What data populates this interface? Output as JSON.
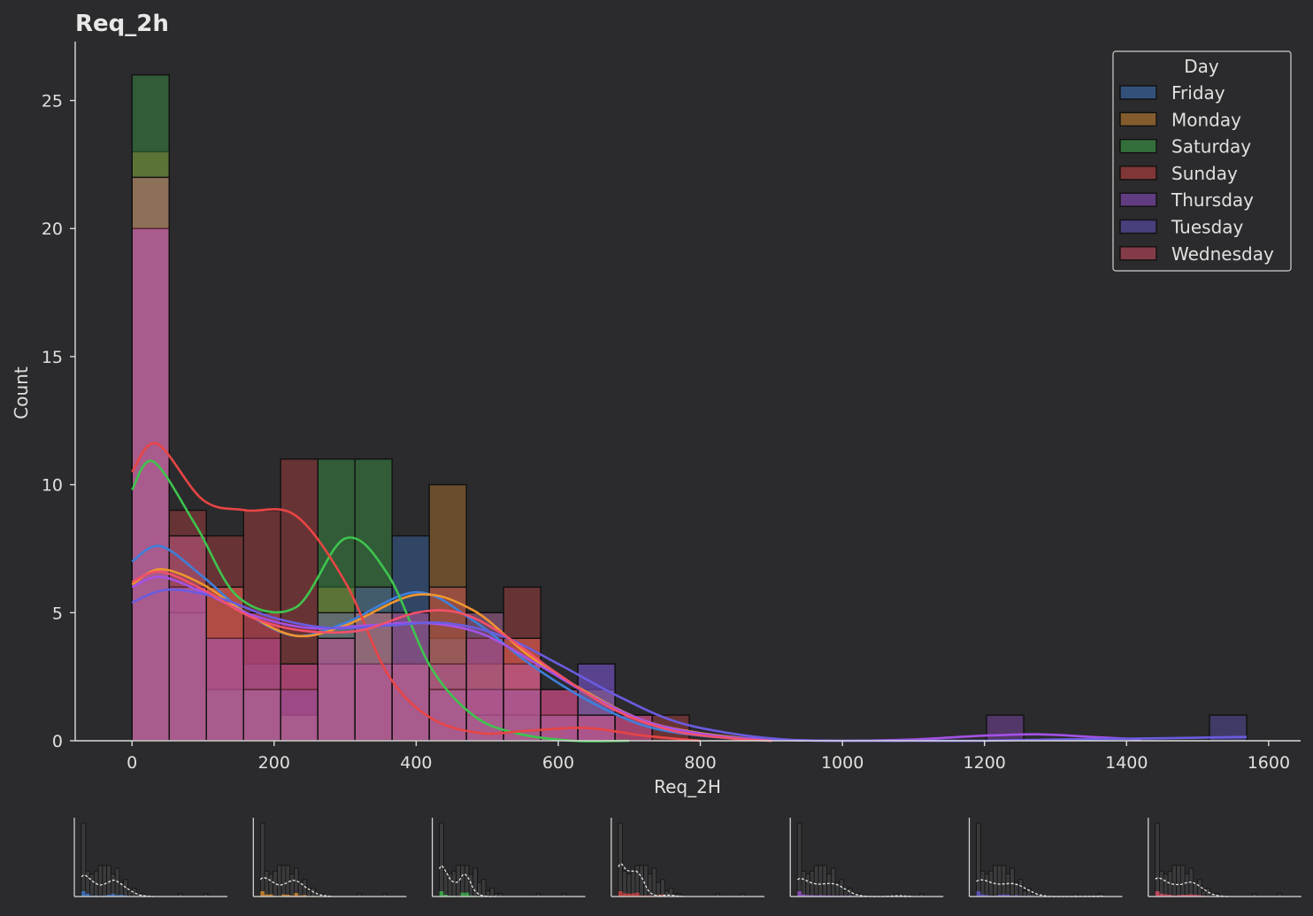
{
  "chart_data": {
    "type": "bar",
    "title": "Req_2h",
    "xlabel": "Req_2H",
    "ylabel": "Count",
    "xlim": [
      -80,
      1645
    ],
    "ylim": [
      0,
      27.3
    ],
    "xticks": [
      0,
      200,
      400,
      600,
      800,
      1000,
      1200,
      1400,
      1600
    ],
    "yticks": [
      0,
      5,
      10,
      15,
      20,
      25
    ],
    "bin_edges": [
      0,
      52.3,
      104.6,
      156.9,
      209.2,
      261.5,
      313.8,
      366.1,
      418.4,
      470.7,
      523,
      575.3,
      627.6,
      679.9,
      732.2,
      784.5,
      836.8,
      889.1,
      941.4,
      993.7,
      1046,
      1098.3,
      1150.6,
      1202.9,
      1255.2,
      1307.5,
      1359.8,
      1412.1,
      1464.4,
      1516.7,
      1569
    ],
    "legend": {
      "title": "Day",
      "position": "top-right"
    },
    "series": [
      {
        "name": "Friday",
        "color": "#3f7fd9",
        "counts": [
          22,
          8,
          2,
          3,
          1,
          3,
          5,
          8,
          4,
          5,
          3,
          1,
          1,
          0,
          0,
          0,
          0,
          0,
          0,
          0,
          0,
          0,
          0,
          0,
          0,
          0,
          0,
          0,
          0,
          0
        ],
        "kde_x": [
          0,
          40,
          100,
          160,
          230,
          300,
          400,
          480,
          560,
          640,
          720,
          800,
          900
        ],
        "kde_y": [
          7,
          7.6,
          6.4,
          5,
          4.1,
          4.6,
          5.8,
          4.7,
          3,
          1.6,
          0.6,
          0.2,
          0
        ]
      },
      {
        "name": "Monday",
        "color": "#f0962e",
        "counts": [
          23,
          6,
          6,
          2,
          1,
          6,
          5,
          3,
          10,
          3,
          4,
          1,
          2,
          0,
          0,
          0,
          0,
          0,
          0,
          0,
          0,
          0,
          0,
          0,
          0,
          0,
          0,
          0,
          0,
          0
        ],
        "kde_x": [
          0,
          40,
          100,
          160,
          230,
          300,
          400,
          480,
          560,
          640,
          720,
          800,
          900
        ],
        "kde_y": [
          6.1,
          6.7,
          6.1,
          5,
          4.1,
          4.5,
          5.7,
          5.1,
          3.3,
          1.9,
          0.8,
          0.3,
          0
        ]
      },
      {
        "name": "Saturday",
        "color": "#3ec44e",
        "counts": [
          26,
          5,
          2,
          2,
          1,
          11,
          11,
          3,
          2,
          1,
          1,
          0,
          0,
          0,
          0,
          0,
          0,
          0,
          0,
          0,
          0,
          0,
          0,
          0,
          0,
          0,
          0,
          0,
          0,
          0
        ],
        "kde_x": [
          0,
          30,
          90,
          150,
          230,
          300,
          360,
          420,
          480,
          540,
          620,
          700
        ],
        "kde_y": [
          9.8,
          10.9,
          8.4,
          5.6,
          5.2,
          7.9,
          6.5,
          2.9,
          1,
          0.3,
          0,
          0
        ]
      },
      {
        "name": "Sunday",
        "color": "#e84545",
        "counts": [
          20,
          9,
          8,
          9,
          11,
          3,
          3,
          3,
          2,
          4,
          6,
          2,
          1,
          1,
          1,
          0,
          0,
          0,
          0,
          0,
          0,
          0,
          0,
          0,
          0,
          0,
          0,
          0,
          0,
          0
        ],
        "kde_x": [
          0,
          35,
          100,
          160,
          230,
          300,
          360,
          420,
          490,
          560,
          640,
          720,
          800
        ],
        "kde_y": [
          10.5,
          11.6,
          9.4,
          9,
          8.8,
          6.2,
          2.6,
          0.9,
          0.3,
          0.4,
          0.5,
          0.2,
          0
        ]
      },
      {
        "name": "Thursday",
        "color": "#a552e6",
        "counts": [
          20,
          6,
          4,
          4,
          3,
          4,
          3,
          3,
          3,
          2,
          3,
          2,
          3,
          1,
          0,
          0,
          0,
          0,
          0,
          0,
          0,
          0,
          0,
          1,
          0,
          0,
          0,
          0,
          0,
          0
        ],
        "kde_x": [
          0,
          40,
          100,
          170,
          250,
          330,
          410,
          490,
          570,
          650,
          730,
          820,
          900,
          1000,
          1100,
          1200,
          1280,
          1350,
          1420
        ],
        "kde_y": [
          6,
          6.4,
          5.8,
          4.9,
          4.4,
          4.5,
          4.6,
          4.2,
          3,
          1.7,
          0.7,
          0.2,
          0.05,
          0,
          0.05,
          0.2,
          0.25,
          0.15,
          0.05
        ]
      },
      {
        "name": "Tuesday",
        "color": "#6a5ce0",
        "counts": [
          20,
          6,
          4,
          2,
          2,
          5,
          6,
          5,
          2,
          4,
          2,
          1,
          3,
          0,
          0,
          0,
          0,
          0,
          0,
          0,
          0,
          0,
          0,
          0,
          0,
          0,
          0,
          0,
          0,
          1
        ],
        "kde_x": [
          0,
          50,
          120,
          200,
          280,
          360,
          440,
          520,
          600,
          680,
          760,
          840,
          920,
          1000,
          1100,
          1200,
          1300,
          1400,
          1500,
          1569
        ],
        "kde_y": [
          5.4,
          5.9,
          5.6,
          4.8,
          4.4,
          4.5,
          4.6,
          4.1,
          3,
          1.8,
          0.8,
          0.3,
          0.05,
          0,
          0,
          0,
          0.05,
          0.08,
          0.12,
          0.15
        ]
      },
      {
        "name": "Wednesday",
        "color": "#f2506a",
        "counts": [
          22,
          8,
          6,
          5,
          3,
          4,
          5,
          5,
          6,
          5,
          4,
          2,
          1,
          1,
          0,
          0,
          0,
          0,
          0,
          0,
          0,
          0,
          0,
          0,
          0,
          0,
          0,
          0,
          0,
          0
        ],
        "kde_x": [
          0,
          40,
          100,
          170,
          240,
          320,
          400,
          460,
          520,
          600,
          680,
          760,
          840,
          900
        ],
        "kde_y": [
          6.2,
          6.6,
          5.9,
          4.8,
          4.3,
          4.3,
          5,
          5,
          4.2,
          2.6,
          1.2,
          0.4,
          0.1,
          0
        ]
      }
    ]
  }
}
